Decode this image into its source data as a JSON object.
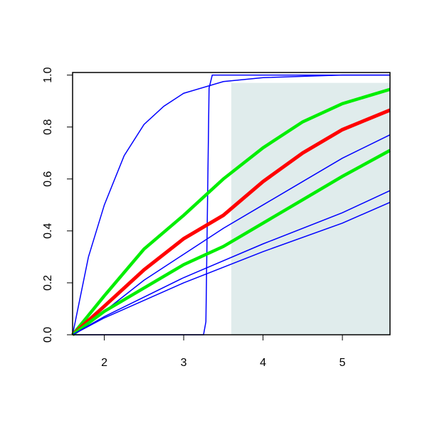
{
  "chart_data": {
    "type": "line",
    "xlim": [
      1.6,
      5.6
    ],
    "ylim": [
      0,
      1.01
    ],
    "xticks": [
      2,
      3,
      4,
      5
    ],
    "yticks": [
      {
        "value": 0,
        "label": "0.0"
      },
      0.2,
      0.4,
      0.6,
      0.8,
      {
        "value": 1,
        "label": "1.0"
      }
    ],
    "shaded_region": {
      "x": [
        3.6,
        5.6
      ],
      "y": [
        0,
        0.97
      ],
      "color": "#e0ecec"
    },
    "series": [
      {
        "color": "#0000ff",
        "width": 1.5,
        "x": [
          1.6,
          1.8,
          2,
          2.25,
          2.5,
          2.75,
          3,
          3.5,
          4,
          5,
          5.6
        ],
        "values": [
          0,
          0.3,
          0.5,
          0.69,
          0.81,
          0.88,
          0.93,
          0.975,
          0.99,
          1,
          1
        ]
      },
      {
        "color": "#0000ff",
        "width": 1.5,
        "x": [
          1.6,
          3.25,
          3.28,
          3.3,
          3.32,
          3.36,
          5.6
        ],
        "values": [
          0,
          0,
          0.05,
          0.5,
          0.95,
          1,
          1
        ]
      },
      {
        "color": "#00ee00",
        "width": 4.5,
        "x": [
          1.6,
          2,
          2.5,
          3,
          3.5,
          4,
          4.5,
          5,
          5.6
        ],
        "values": [
          0,
          0.15,
          0.33,
          0.46,
          0.6,
          0.72,
          0.82,
          0.89,
          0.945
        ]
      },
      {
        "color": "#ff0000",
        "width": 5,
        "x": [
          1.6,
          2,
          2.5,
          3,
          3.5,
          4,
          4.5,
          5,
          5.6
        ],
        "values": [
          0,
          0.11,
          0.25,
          0.37,
          0.46,
          0.59,
          0.7,
          0.79,
          0.865
        ]
      },
      {
        "color": "#0000ff",
        "width": 1.5,
        "x": [
          1.6,
          2,
          2.5,
          3,
          3.5,
          4,
          4.5,
          5,
          5.6
        ],
        "values": [
          0,
          0.09,
          0.21,
          0.31,
          0.41,
          0.5,
          0.59,
          0.68,
          0.77
        ]
      },
      {
        "color": "#00ee00",
        "width": 4.5,
        "x": [
          1.6,
          2,
          3,
          3.5,
          4,
          4.5,
          5,
          5.6
        ],
        "values": [
          0,
          0.09,
          0.27,
          0.34,
          0.43,
          0.52,
          0.61,
          0.71
        ]
      },
      {
        "color": "#0000ff",
        "width": 1.5,
        "x": [
          1.6,
          2,
          3,
          4,
          5,
          5.6
        ],
        "values": [
          0,
          0.07,
          0.22,
          0.35,
          0.47,
          0.555
        ]
      },
      {
        "color": "#0000ff",
        "width": 1.5,
        "x": [
          1.6,
          2,
          3,
          4,
          5,
          5.6
        ],
        "values": [
          0,
          0.065,
          0.2,
          0.32,
          0.43,
          0.51
        ]
      }
    ]
  }
}
